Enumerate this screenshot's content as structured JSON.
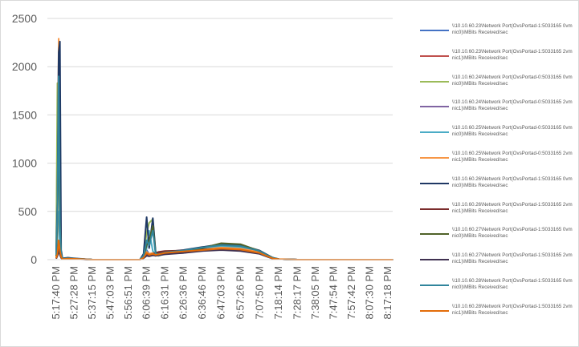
{
  "chart_data": {
    "type": "line",
    "title": "",
    "xlabel": "",
    "ylabel": "",
    "ylim": [
      0,
      2500
    ],
    "y_ticks": [
      0,
      500,
      1000,
      1500,
      2000,
      2500
    ],
    "x_tick_labels": [
      "5:17:40 PM",
      "5:27:28 PM",
      "5:37:15 PM",
      "5:47:03 PM",
      "5:56:51 PM",
      "6:06:39 PM",
      "6:16:31 PM",
      "6:26:36 PM",
      "6:36:46 PM",
      "6:47:03 PM",
      "6:57:26 PM",
      "7:07:50 PM",
      "7:18:14 PM",
      "7:28:17 PM",
      "7:38:05 PM",
      "7:47:54 PM",
      "7:57:42 PM",
      "8:07:30 PM",
      "8:17:18 PM"
    ],
    "legend_position": "right",
    "grid": "horizontal",
    "x_points": [
      "5:17:40 PM",
      "5:18:20 PM",
      "5:19:00 PM",
      "5:19:40 PM",
      "5:20:20 PM",
      "5:21:00 PM",
      "5:24:00 PM",
      "5:27:28 PM",
      "5:37:15 PM",
      "5:47:03 PM",
      "5:56:51 PM",
      "6:03:00 PM",
      "6:05:00 PM",
      "6:06:39 PM",
      "6:08:00 PM",
      "6:10:00 PM",
      "6:11:30 PM",
      "6:13:00 PM",
      "6:16:31 PM",
      "6:26:36 PM",
      "6:36:46 PM",
      "6:47:03 PM",
      "6:57:26 PM",
      "7:07:50 PM",
      "7:12:00 PM",
      "7:15:00 PM",
      "7:18:14 PM",
      "7:28:17 PM",
      "7:38:05 PM",
      "7:47:54 PM",
      "7:57:42 PM",
      "8:07:30 PM",
      "8:17:18 PM",
      "8:20:00 PM"
    ],
    "series": [
      {
        "name": "\\\\10.10.60.23\\Network Port(OvsPortad-1:5033165 0vmnic0)\\MBits Received/sec",
        "color": "#4472C4",
        "values": [
          60,
          800,
          2200,
          200,
          70,
          10,
          20,
          15,
          0,
          0,
          0,
          0,
          30,
          100,
          60,
          70,
          50,
          40,
          60,
          70,
          100,
          130,
          120,
          80,
          40,
          20,
          5,
          0,
          0,
          0,
          0,
          0,
          0,
          0
        ]
      },
      {
        "name": "\\\\10.10.60.23\\Network Port(OvsPortad-1:5033165 2vmnic1)\\MBits Received/sec",
        "color": "#C0504D",
        "values": [
          10,
          40,
          100,
          60,
          20,
          5,
          10,
          10,
          0,
          0,
          0,
          0,
          20,
          60,
          40,
          50,
          60,
          70,
          80,
          90,
          100,
          110,
          100,
          70,
          40,
          15,
          5,
          0,
          0,
          0,
          0,
          0,
          0,
          0
        ]
      },
      {
        "name": "\\\\10.10.60.24\\Network Port(OvsPortad-0:5033165 0vmnic0)\\MBits Received/sec",
        "color": "#9BBB59",
        "values": [
          100,
          1830,
          1000,
          300,
          80,
          10,
          15,
          10,
          0,
          0,
          0,
          0,
          40,
          280,
          380,
          420,
          60,
          40,
          60,
          80,
          110,
          150,
          140,
          90,
          50,
          20,
          5,
          0,
          0,
          0,
          0,
          0,
          0,
          0
        ]
      },
      {
        "name": "\\\\10.10.60.24\\Network Port(OvsPortad-0:5033165 2vmnic1)\\MBits Received/sec",
        "color": "#8064A2",
        "values": [
          20,
          60,
          150,
          80,
          30,
          5,
          10,
          8,
          0,
          0,
          0,
          0,
          20,
          50,
          40,
          60,
          40,
          50,
          60,
          80,
          100,
          120,
          110,
          75,
          40,
          15,
          5,
          0,
          0,
          0,
          0,
          0,
          0,
          0
        ]
      },
      {
        "name": "\\\\10.10.60.25\\Network Port(OvsPortad-0:5033165 0vmnic0)\\MBits Received/sec",
        "color": "#4BACC6",
        "values": [
          30,
          200,
          500,
          150,
          40,
          8,
          12,
          10,
          0,
          0,
          0,
          0,
          30,
          120,
          300,
          90,
          50,
          45,
          70,
          90,
          120,
          140,
          130,
          85,
          45,
          18,
          5,
          0,
          0,
          0,
          0,
          0,
          0,
          0
        ]
      },
      {
        "name": "\\\\10.10.60.25\\Network Port(OvsPortad-0:5033165 2vmnic1)\\MBits Received/sec",
        "color": "#F79646",
        "values": [
          20,
          300,
          2290,
          500,
          60,
          10,
          15,
          10,
          0,
          0,
          0,
          0,
          25,
          80,
          60,
          70,
          55,
          50,
          65,
          85,
          105,
          125,
          115,
          80,
          40,
          15,
          5,
          0,
          0,
          0,
          0,
          0,
          0,
          0
        ]
      },
      {
        "name": "\\\\10.10.60.26\\Network Port(OvsPortad-1:5033165 0vmnic0)\\MBits Received/sec",
        "color": "#1F3864",
        "values": [
          80,
          600,
          2150,
          2260,
          100,
          15,
          20,
          12,
          0,
          0,
          0,
          0,
          60,
          440,
          120,
          430,
          80,
          60,
          80,
          100,
          130,
          160,
          150,
          95,
          50,
          20,
          5,
          0,
          0,
          0,
          0,
          0,
          0,
          0
        ]
      },
      {
        "name": "\\\\10.10.60.26\\Network Port(OvsPortad-1:5033165 2vmnic1)\\MBits Received/sec",
        "color": "#7B2C2C",
        "values": [
          15,
          50,
          120,
          70,
          25,
          5,
          10,
          8,
          0,
          0,
          0,
          0,
          20,
          60,
          50,
          60,
          70,
          80,
          90,
          95,
          105,
          110,
          100,
          70,
          35,
          12,
          5,
          0,
          0,
          0,
          0,
          0,
          0,
          0
        ]
      },
      {
        "name": "\\\\10.10.60.27\\Network Port(OvsPortad-1:5033165 0vmnic0)\\MBits Received/sec",
        "color": "#4F6228",
        "values": [
          40,
          400,
          1600,
          400,
          60,
          10,
          15,
          10,
          0,
          0,
          0,
          0,
          30,
          150,
          200,
          350,
          70,
          50,
          70,
          90,
          120,
          170,
          160,
          90,
          45,
          18,
          5,
          0,
          0,
          0,
          0,
          0,
          0,
          0
        ]
      },
      {
        "name": "\\\\10.10.60.27\\Network Port(OvsPortad-1:5033165 2vmnic1)\\MBits Received/sec",
        "color": "#403151",
        "values": [
          10,
          40,
          90,
          50,
          20,
          5,
          8,
          6,
          0,
          0,
          0,
          0,
          15,
          40,
          35,
          45,
          40,
          45,
          55,
          70,
          90,
          100,
          90,
          60,
          30,
          10,
          5,
          0,
          0,
          0,
          0,
          0,
          0,
          0
        ]
      },
      {
        "name": "\\\\10.10.60.28\\Network Port(OvsPortad-1:5033165 0vmnic0)\\MBits Received/sec",
        "color": "#31859C",
        "values": [
          50,
          500,
          1900,
          350,
          70,
          10,
          15,
          10,
          0,
          0,
          0,
          0,
          40,
          200,
          150,
          300,
          60,
          55,
          75,
          95,
          125,
          150,
          140,
          90,
          45,
          18,
          5,
          0,
          0,
          0,
          0,
          0,
          0,
          0
        ]
      },
      {
        "name": "\\\\10.10.60.28\\Network Port(OvsPortad-1:5033165 2vmnic1)\\MBits Received/sec",
        "color": "#E36C09",
        "values": [
          15,
          60,
          200,
          90,
          30,
          5,
          10,
          8,
          0,
          0,
          0,
          0,
          20,
          70,
          50,
          60,
          50,
          55,
          70,
          85,
          100,
          115,
          105,
          70,
          35,
          12,
          5,
          0,
          0,
          0,
          0,
          0,
          0,
          0
        ]
      }
    ]
  }
}
